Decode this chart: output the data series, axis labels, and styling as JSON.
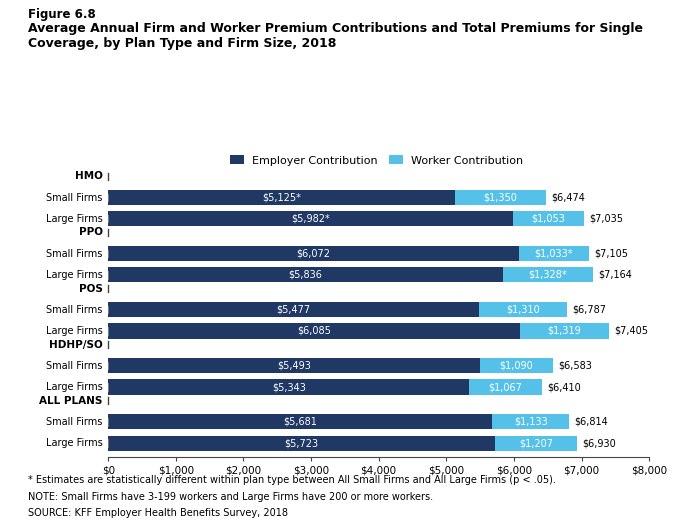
{
  "title_line1": "Figure 6.8",
  "title_line2a": "Average Annual Firm and Worker Premium Contributions and Total Premiums for Single",
  "title_line2b": "Coverage, by Plan Type and Firm Size, 2018",
  "employer_color": "#1F3864",
  "worker_color": "#56C1E8",
  "background_color": "#FFFFFF",
  "xticks": [
    0,
    1000,
    2000,
    3000,
    4000,
    5000,
    6000,
    7000,
    8000
  ],
  "xticklabels": [
    "$0",
    "$1,000",
    "$2,000",
    "$3,000",
    "$4,000",
    "$5,000",
    "$6,000",
    "$7,000",
    "$8,000"
  ],
  "groups": [
    {
      "label": "HMO",
      "is_header": true
    },
    {
      "label": "Small Firms",
      "is_header": false,
      "employer": 5125,
      "worker": 1350,
      "emp_label": "$5,125*",
      "wkr_label": "$1,350",
      "tot_label": "$6,474"
    },
    {
      "label": "Large Firms",
      "is_header": false,
      "employer": 5982,
      "worker": 1053,
      "emp_label": "$5,982*",
      "wkr_label": "$1,053",
      "tot_label": "$7,035"
    },
    {
      "label": "PPO",
      "is_header": true
    },
    {
      "label": "Small Firms",
      "is_header": false,
      "employer": 6072,
      "worker": 1033,
      "emp_label": "$6,072",
      "wkr_label": "$1,033*",
      "tot_label": "$7,105"
    },
    {
      "label": "Large Firms",
      "is_header": false,
      "employer": 5836,
      "worker": 1328,
      "emp_label": "$5,836",
      "wkr_label": "$1,328*",
      "tot_label": "$7,164"
    },
    {
      "label": "POS",
      "is_header": true
    },
    {
      "label": "Small Firms",
      "is_header": false,
      "employer": 5477,
      "worker": 1310,
      "emp_label": "$5,477",
      "wkr_label": "$1,310",
      "tot_label": "$6,787"
    },
    {
      "label": "Large Firms",
      "is_header": false,
      "employer": 6085,
      "worker": 1319,
      "emp_label": "$6,085",
      "wkr_label": "$1,319",
      "tot_label": "$7,405"
    },
    {
      "label": "HDHP/SO",
      "is_header": true
    },
    {
      "label": "Small Firms",
      "is_header": false,
      "employer": 5493,
      "worker": 1090,
      "emp_label": "$5,493",
      "wkr_label": "$1,090",
      "tot_label": "$6,583"
    },
    {
      "label": "Large Firms",
      "is_header": false,
      "employer": 5343,
      "worker": 1067,
      "emp_label": "$5,343",
      "wkr_label": "$1,067",
      "tot_label": "$6,410"
    },
    {
      "label": "ALL PLANS",
      "is_header": true
    },
    {
      "label": "Small Firms",
      "is_header": false,
      "employer": 5681,
      "worker": 1133,
      "emp_label": "$5,681",
      "wkr_label": "$1,133",
      "tot_label": "$6,814"
    },
    {
      "label": "Large Firms",
      "is_header": false,
      "employer": 5723,
      "worker": 1207,
      "emp_label": "$5,723",
      "wkr_label": "$1,207",
      "tot_label": "$6,930"
    }
  ],
  "legend_employer": "Employer Contribution",
  "legend_worker": "Worker Contribution",
  "footnote1": "* Estimates are statistically different within plan type between All Small Firms and All Large Firms (p < .05).",
  "footnote2": "NOTE: Small Firms have 3-199 workers and Large Firms have 200 or more workers.",
  "footnote3": "SOURCE: KFF Employer Health Benefits Survey, 2018"
}
